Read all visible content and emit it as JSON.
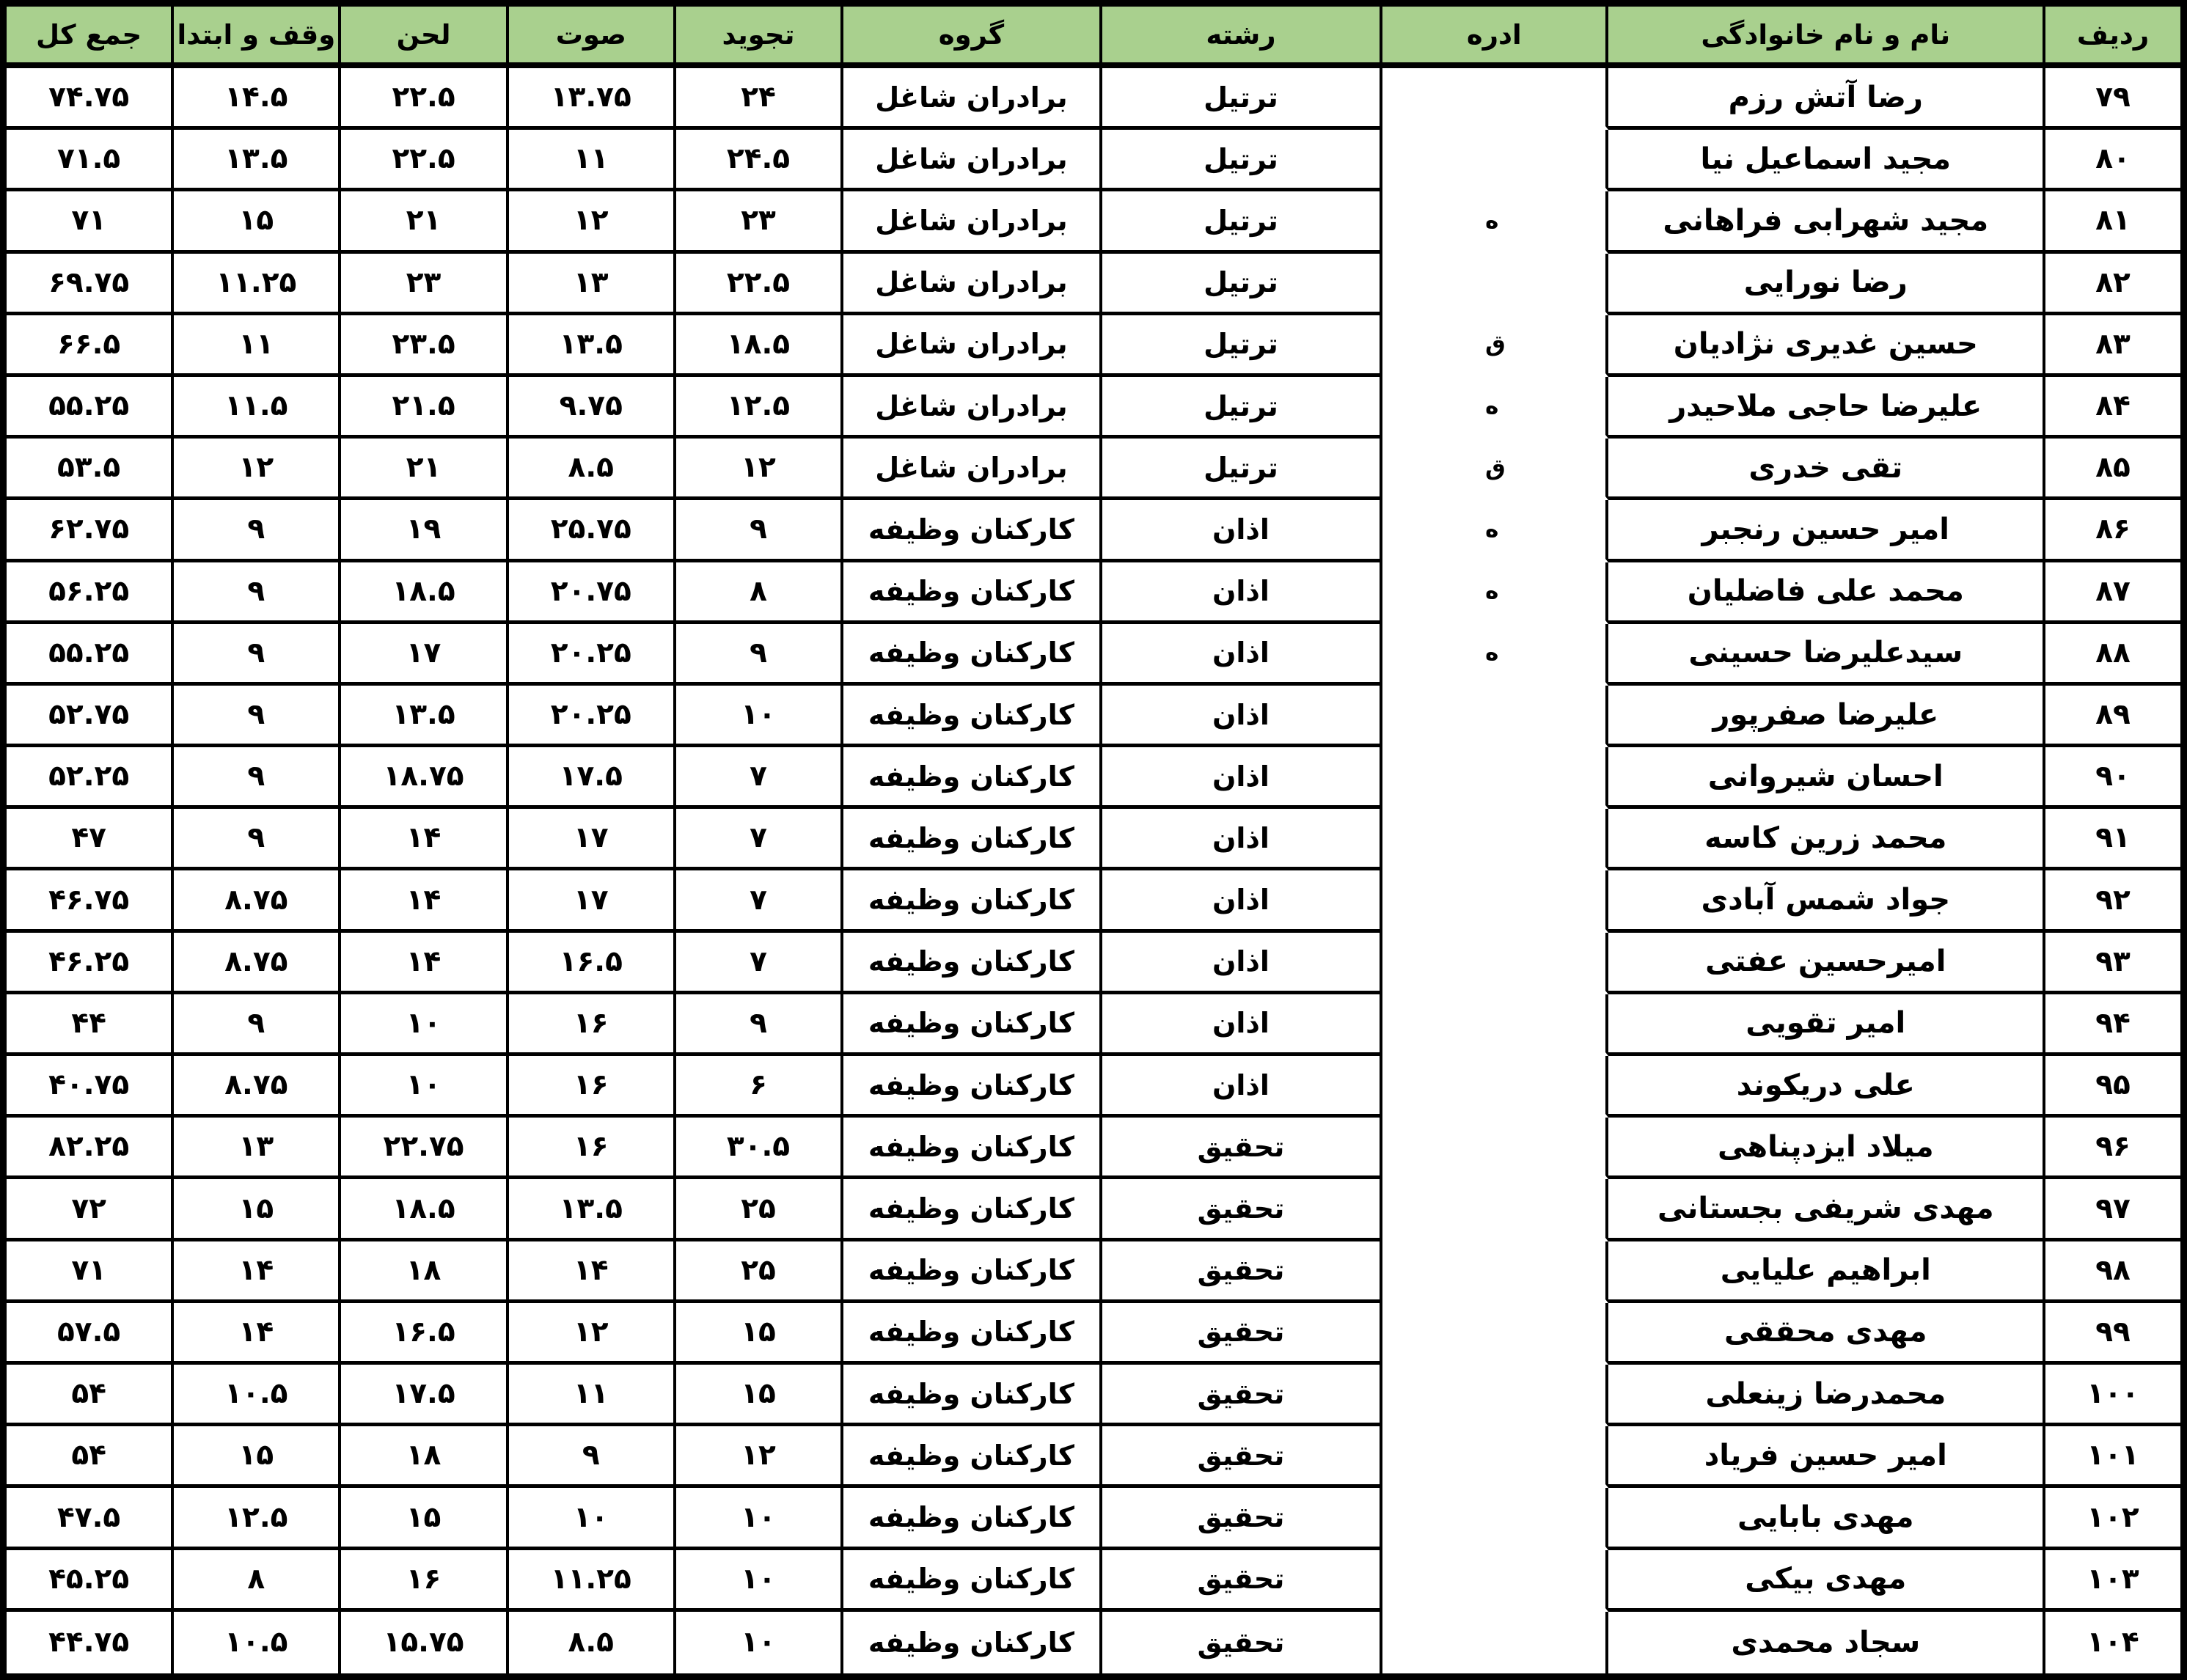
{
  "colors": {
    "header_bg": "#a9d08e",
    "border": "#000000",
    "text": "#000000",
    "row_bg": "#ffffff"
  },
  "table": {
    "headers": {
      "radif": "ردیف",
      "name": "نام و نام خانوادگی",
      "office": "ادره",
      "reshte": "رشته",
      "group": "گروه",
      "tajvid": "تجوید",
      "sout": "صوت",
      "lahn": "لحن",
      "vaghf": "وقف و ابتدا",
      "total": "جمع کل"
    },
    "rows": [
      {
        "radif": "۷۹",
        "name": "رضا آتش رزم",
        "office": "",
        "office_fragment": "",
        "reshte": "ترتیل",
        "group": "برادران شاغل",
        "tajvid": "۲۴",
        "sout": "۱۳.۷۵",
        "lahn": "۲۲.۵",
        "vaghf": "۱۴.۵",
        "total": "۷۴.۷۵"
      },
      {
        "radif": "۸۰",
        "name": "مجید اسماعیل نیا",
        "office": "",
        "office_fragment": "",
        "reshte": "ترتیل",
        "group": "برادران شاغل",
        "tajvid": "۲۴.۵",
        "sout": "۱۱",
        "lahn": "۲۲.۵",
        "vaghf": "۱۳.۵",
        "total": "۷۱.۵"
      },
      {
        "radif": "۸۱",
        "name": "مجید شهرابی فراهانی",
        "office": "",
        "office_fragment": "ه",
        "reshte": "ترتیل",
        "group": "برادران شاغل",
        "tajvid": "۲۳",
        "sout": "۱۲",
        "lahn": "۲۱",
        "vaghf": "۱۵",
        "total": "۷۱"
      },
      {
        "radif": "۸۲",
        "name": "رضا نورایی",
        "office": "",
        "office_fragment": "",
        "reshte": "ترتیل",
        "group": "برادران شاغل",
        "tajvid": "۲۲.۵",
        "sout": "۱۳",
        "lahn": "۲۳",
        "vaghf": "۱۱.۲۵",
        "total": "۶۹.۷۵"
      },
      {
        "radif": "۸۳",
        "name": "حسین غدیری نژادیان",
        "office": "",
        "office_fragment": "ق",
        "reshte": "ترتیل",
        "group": "برادران شاغل",
        "tajvid": "۱۸.۵",
        "sout": "۱۳.۵",
        "lahn": "۲۳.۵",
        "vaghf": "۱۱",
        "total": "۶۶.۵"
      },
      {
        "radif": "۸۴",
        "name": "علیرضا حاجی ملاحیدر",
        "office": "",
        "office_fragment": "ه",
        "reshte": "ترتیل",
        "group": "برادران شاغل",
        "tajvid": "۱۲.۵",
        "sout": "۹.۷۵",
        "lahn": "۲۱.۵",
        "vaghf": "۱۱.۵",
        "total": "۵۵.۲۵"
      },
      {
        "radif": "۸۵",
        "name": "تقی خدری",
        "office": "",
        "office_fragment": "ق",
        "reshte": "ترتیل",
        "group": "برادران شاغل",
        "tajvid": "۱۲",
        "sout": "۸.۵",
        "lahn": "۲۱",
        "vaghf": "۱۲",
        "total": "۵۳.۵"
      },
      {
        "radif": "۸۶",
        "name": "امیر حسین رنجبر",
        "office": "",
        "office_fragment": "ه",
        "reshte": "اذان",
        "group": "کارکنان وظیفه",
        "tajvid": "۹",
        "sout": "۲۵.۷۵",
        "lahn": "۱۹",
        "vaghf": "۹",
        "total": "۶۲.۷۵"
      },
      {
        "radif": "۸۷",
        "name": "محمد علی فاضلیان",
        "office": "",
        "office_fragment": "ه",
        "reshte": "اذان",
        "group": "کارکنان وظیفه",
        "tajvid": "۸",
        "sout": "۲۰.۷۵",
        "lahn": "۱۸.۵",
        "vaghf": "۹",
        "total": "۵۶.۲۵"
      },
      {
        "radif": "۸۸",
        "name": "سیدعلیرضا  حسینی",
        "office": "",
        "office_fragment": "ه",
        "reshte": "اذان",
        "group": "کارکنان وظیفه",
        "tajvid": "۹",
        "sout": "۲۰.۲۵",
        "lahn": "۱۷",
        "vaghf": "۹",
        "total": "۵۵.۲۵"
      },
      {
        "radif": "۸۹",
        "name": "علیرضا صفرپور",
        "office": "",
        "office_fragment": "",
        "reshte": "اذان",
        "group": "کارکنان وظیفه",
        "tajvid": "۱۰",
        "sout": "۲۰.۲۵",
        "lahn": "۱۳.۵",
        "vaghf": "۹",
        "total": "۵۲.۷۵"
      },
      {
        "radif": "۹۰",
        "name": "احسان شیروانی",
        "office": "",
        "office_fragment": "",
        "reshte": "اذان",
        "group": "کارکنان وظیفه",
        "tajvid": "۷",
        "sout": "۱۷.۵",
        "lahn": "۱۸.۷۵",
        "vaghf": "۹",
        "total": "۵۲.۲۵"
      },
      {
        "radif": "۹۱",
        "name": "محمد زرین کاسه",
        "office": "",
        "office_fragment": "",
        "reshte": "اذان",
        "group": "کارکنان وظیفه",
        "tajvid": "۷",
        "sout": "۱۷",
        "lahn": "۱۴",
        "vaghf": "۹",
        "total": "۴۷"
      },
      {
        "radif": "۹۲",
        "name": "جواد شمس آبادی",
        "office": "",
        "office_fragment": "",
        "reshte": "اذان",
        "group": "کارکنان وظیفه",
        "tajvid": "۷",
        "sout": "۱۷",
        "lahn": "۱۴",
        "vaghf": "۸.۷۵",
        "total": "۴۶.۷۵"
      },
      {
        "radif": "۹۳",
        "name": "امیرحسین عفتی",
        "office": "",
        "office_fragment": "",
        "reshte": "اذان",
        "group": "کارکنان وظیفه",
        "tajvid": "۷",
        "sout": "۱۶.۵",
        "lahn": "۱۴",
        "vaghf": "۸.۷۵",
        "total": "۴۶.۲۵"
      },
      {
        "radif": "۹۴",
        "name": "امیر تقویی",
        "office": "",
        "office_fragment": "",
        "reshte": "اذان",
        "group": "کارکنان وظیفه",
        "tajvid": "۹",
        "sout": "۱۶",
        "lahn": "۱۰",
        "vaghf": "۹",
        "total": "۴۴"
      },
      {
        "radif": "۹۵",
        "name": "علی دریکوند",
        "office": "",
        "office_fragment": "",
        "reshte": "اذان",
        "group": "کارکنان وظیفه",
        "tajvid": "۶",
        "sout": "۱۶",
        "lahn": "۱۰",
        "vaghf": "۸.۷۵",
        "total": "۴۰.۷۵"
      },
      {
        "radif": "۹۶",
        "name": "میلاد ایزدپناهی",
        "office": "",
        "office_fragment": "",
        "reshte": "تحقیق",
        "group": "کارکنان وظیفه",
        "tajvid": "۳۰.۵",
        "sout": "۱۶",
        "lahn": "۲۲.۷۵",
        "vaghf": "۱۳",
        "total": "۸۲.۲۵"
      },
      {
        "radif": "۹۷",
        "name": "مهدی شریفی بجستانی",
        "office": "",
        "office_fragment": "",
        "reshte": "تحقیق",
        "group": "کارکنان وظیفه",
        "tajvid": "۲۵",
        "sout": "۱۳.۵",
        "lahn": "۱۸.۵",
        "vaghf": "۱۵",
        "total": "۷۲"
      },
      {
        "radif": "۹۸",
        "name": "ابراهیم علیایی",
        "office": "",
        "office_fragment": "",
        "reshte": "تحقیق",
        "group": "کارکنان وظیفه",
        "tajvid": "۲۵",
        "sout": "۱۴",
        "lahn": "۱۸",
        "vaghf": "۱۴",
        "total": "۷۱"
      },
      {
        "radif": "۹۹",
        "name": "مهدی محققی",
        "office": "",
        "office_fragment": "",
        "reshte": "تحقیق",
        "group": "کارکنان وظیفه",
        "tajvid": "۱۵",
        "sout": "۱۲",
        "lahn": "۱۶.۵",
        "vaghf": "۱۴",
        "total": "۵۷.۵"
      },
      {
        "radif": "۱۰۰",
        "name": "محمدرضا زینعلی",
        "office": "",
        "office_fragment": "",
        "reshte": "تحقیق",
        "group": "کارکنان وظیفه",
        "tajvid": "۱۵",
        "sout": "۱۱",
        "lahn": "۱۷.۵",
        "vaghf": "۱۰.۵",
        "total": "۵۴"
      },
      {
        "radif": "۱۰۱",
        "name": "امیر حسین  فریاد",
        "office": "",
        "office_fragment": "",
        "reshte": "تحقیق",
        "group": "کارکنان وظیفه",
        "tajvid": "۱۲",
        "sout": "۹",
        "lahn": "۱۸",
        "vaghf": "۱۵",
        "total": "۵۴"
      },
      {
        "radif": "۱۰۲",
        "name": "مهدی بابایی",
        "office": "",
        "office_fragment": "",
        "reshte": "تحقیق",
        "group": "کارکنان وظیفه",
        "tajvid": "۱۰",
        "sout": "۱۰",
        "lahn": "۱۵",
        "vaghf": "۱۲.۵",
        "total": "۴۷.۵"
      },
      {
        "radif": "۱۰۳",
        "name": "مهدی بیکی",
        "office": "",
        "office_fragment": "",
        "reshte": "تحقیق",
        "group": "کارکنان وظیفه",
        "tajvid": "۱۰",
        "sout": "۱۱.۲۵",
        "lahn": "۱۶",
        "vaghf": "۸",
        "total": "۴۵.۲۵"
      },
      {
        "radif": "۱۰۴",
        "name": "سجاد  محمدی",
        "office": "",
        "office_fragment": "",
        "reshte": "تحقیق",
        "group": "کارکنان وظیفه",
        "tajvid": "۱۰",
        "sout": "۸.۵",
        "lahn": "۱۵.۷۵",
        "vaghf": "۱۰.۵",
        "total": "۴۴.۷۵"
      }
    ]
  }
}
